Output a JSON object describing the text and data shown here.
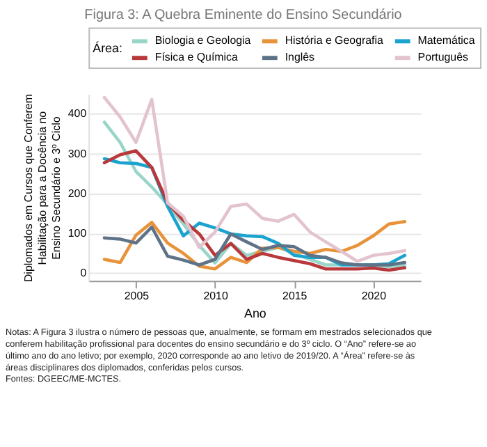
{
  "chart_data": {
    "type": "line",
    "title": "Figura 3: A Quebra Eminente do Ensino Secundário",
    "xlabel": "Ano",
    "ylabel": "Diplomados em Cursos que Conferem Habilitação para a Docência no Ensino Secundário e 3º Ciclo",
    "legend_title": "Área:",
    "legend": "top",
    "grid": "y",
    "line_style": "solid",
    "marker": "none",
    "x": [
      2003,
      2004,
      2005,
      2006,
      2007,
      2008,
      2009,
      2010,
      2011,
      2012,
      2013,
      2014,
      2015,
      2016,
      2017,
      2018,
      2019,
      2020,
      2021,
      2022
    ],
    "xlim": [
      2002,
      2023
    ],
    "xticks": [
      2005,
      2010,
      2015,
      2020
    ],
    "ylim": [
      -20,
      450
    ],
    "yticks": [
      0,
      100,
      200,
      300,
      400
    ],
    "series": [
      {
        "name": "Biologia e Geologia",
        "color": "#99d5c9",
        "values": [
          379,
          328,
          255,
          216,
          172,
          123,
          69,
          25,
          74,
          44,
          54,
          64,
          49,
          34,
          20,
          20,
          20,
          20,
          15,
          20
        ]
      },
      {
        "name": "História e Geografia",
        "color": "#e8923a",
        "values": [
          34,
          26,
          95,
          127,
          75,
          49,
          17,
          10,
          39,
          26,
          62,
          64,
          54,
          49,
          59,
          54,
          69,
          93,
          123,
          129
        ]
      },
      {
        "name": "Matemática",
        "color": "#1ba3d0",
        "values": [
          287,
          277,
          275,
          265,
          167,
          93,
          125,
          113,
          98,
          93,
          91,
          74,
          44,
          39,
          39,
          20,
          20,
          20,
          23,
          44
        ]
      },
      {
        "name": "Física e Química",
        "color": "#b8383b",
        "values": [
          277,
          297,
          307,
          265,
          176,
          132,
          98,
          44,
          74,
          34,
          49,
          39,
          31,
          23,
          10,
          10,
          10,
          12,
          7,
          13
        ]
      },
      {
        "name": "Inglês",
        "color": "#5f7388",
        "values": [
          88,
          85,
          75,
          115,
          42,
          32,
          20,
          34,
          98,
          78,
          59,
          69,
          66,
          44,
          39,
          25,
          20,
          20,
          20,
          26
        ]
      },
      {
        "name": "Português",
        "color": "#e3c3cf",
        "values": [
          441,
          392,
          328,
          436,
          176,
          142,
          64,
          103,
          167,
          173,
          137,
          130,
          147,
          103,
          78,
          54,
          29,
          44,
          49,
          56
        ]
      }
    ],
    "annotations": [
      "Notas: A Figura 3 ilustra o número de pessoas que, anualmente, se formam em mestrados selecionados que conferem habilitação profissional para docentes do ensino secundário e do 3º ciclo. O “Ano” refere-se ao último ano do ano letivo; por exemplo, 2020 corresponde ao ano letivo de 2019/20. A “Área” refere-se às áreas disciplinares dos diplomados, conferidas pelos cursos.",
      "Fontes: DGEEC/ME-MCTES."
    ]
  }
}
